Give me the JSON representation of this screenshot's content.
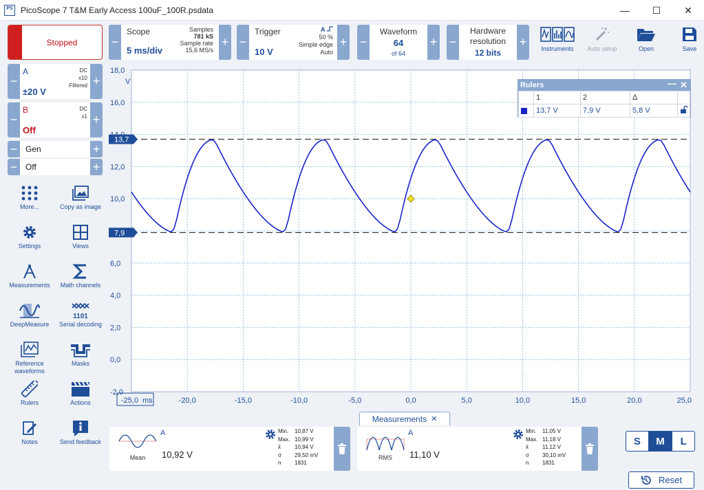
{
  "window": {
    "title": "PicoScope 7 T&M Early Access 100uF_100R.psdata",
    "logo": "PS",
    "minimize": "—",
    "maximize": "☐",
    "close": "✕"
  },
  "toolbar": {
    "run_state": "Stopped",
    "scope": {
      "label": "Scope",
      "value": "5 ms/div",
      "samples_label": "Samples",
      "samples_value": "781 kS",
      "rate_label": "Sample rate",
      "rate_value": "15,6 MS/s"
    },
    "trigger": {
      "label": "Trigger",
      "value": "10 V",
      "channel": "A",
      "edge_icon": "rising-edge-icon",
      "percent": "50 %",
      "type": "Simple edge",
      "mode": "Auto"
    },
    "waveform": {
      "label": "Waveform",
      "current": "64",
      "of": "of 64"
    },
    "hardware": {
      "label1": "Hardware",
      "label2": "resolution",
      "value": "12 bits"
    },
    "instruments_label": "Instruments",
    "autosetup_label": "Auto setup",
    "open_label": "Open",
    "save_label": "Save"
  },
  "channels": {
    "a": {
      "name": "A",
      "coupling": "DC",
      "probe": "x10",
      "filter": "Filtered",
      "range": "±20 V",
      "color": "#1f4e99"
    },
    "b": {
      "name": "B",
      "coupling": "DC",
      "probe": "x1",
      "range": "Off",
      "color": "#c0101a"
    },
    "gen": {
      "name": "Gen",
      "state": "Off"
    }
  },
  "tools": [
    {
      "label": "More...",
      "icon": "more-icon"
    },
    {
      "label": "Copy as image",
      "icon": "image-icon"
    },
    {
      "label": "Settings",
      "icon": "gear-icon"
    },
    {
      "label": "Views",
      "icon": "views-icon"
    },
    {
      "label": "Measurements",
      "icon": "measure-icon"
    },
    {
      "label": "Math channels",
      "icon": "sigma-icon"
    },
    {
      "label": "DeepMeasure",
      "icon": "deepmeasure-icon"
    },
    {
      "label": "Serial decoding",
      "icon": "serial-icon"
    },
    {
      "label": "Reference waveforms",
      "label2": "waveforms",
      "label1": "Reference",
      "icon": "reference-icon"
    },
    {
      "label": "Masks",
      "icon": "mask-icon"
    },
    {
      "label": "Rulers",
      "icon": "ruler-icon"
    },
    {
      "label": "Actions",
      "icon": "clapper-icon"
    },
    {
      "label": "Notes",
      "icon": "notes-icon"
    },
    {
      "label": "Send feedback",
      "icon": "info-icon"
    }
  ],
  "chart_data": {
    "type": "line",
    "x_unit": "ms",
    "y_unit": "V",
    "xlim": [
      -25,
      25
    ],
    "ylim": [
      -2,
      18
    ],
    "x_ticks": [
      "-25,0",
      "-20,0",
      "-15,0",
      "-10,0",
      "-5,0",
      "0,0",
      "5,0",
      "10,0",
      "15,0",
      "20,0",
      "25,0"
    ],
    "y_ticks": [
      "18,0",
      "16,0",
      "14,0",
      "12,0",
      "10,0",
      "8,0",
      "6,0",
      "4,0",
      "2,0",
      "0,0",
      "-2,0"
    ],
    "y_tick_values": [
      18,
      16,
      14,
      12,
      10,
      8,
      6,
      4,
      2,
      0,
      -2
    ],
    "x_tick_values": [
      -25,
      -20,
      -15,
      -10,
      -5,
      0,
      5,
      10,
      15,
      20,
      25
    ],
    "grid": true,
    "series_color": "#1a23c8",
    "series": [
      {
        "name": "A",
        "period_ms": 10,
        "min_v": 7.9,
        "max_v": 13.7,
        "trough_ms": -21.2,
        "peak_ms": -17.6
      }
    ],
    "rulers": [
      {
        "label": "13,7",
        "value": 13.7
      },
      {
        "label": "7,9",
        "value": 7.9
      }
    ],
    "trigger_marker": {
      "x": 0,
      "y": 10
    }
  },
  "rulers_panel": {
    "title": "Rulers",
    "col1": "1",
    "col2": "2",
    "col_delta": "Δ",
    "v1": "13,7 V",
    "v2": "7,9 V",
    "delta": "5,8 V"
  },
  "measurements": {
    "tab_label": "Measurements",
    "items": [
      {
        "channel": "A",
        "name": "Mean",
        "value": "10,92 V",
        "min": "10,87 V",
        "max": "10,99 V",
        "mean": "10,94 V",
        "sigma": "29,50 mV",
        "n": "1831"
      },
      {
        "channel": "A",
        "name": "RMS",
        "value": "11,10 V",
        "min": "11,05 V",
        "max": "11,18 V",
        "mean": "11,12 V",
        "sigma": "30,10 mV",
        "n": "1831"
      }
    ],
    "stat_labels": {
      "min": "Min.",
      "max": "Max.",
      "mean": "x̄",
      "sigma": "σ",
      "n": "n"
    }
  },
  "size": {
    "s": "S",
    "m": "M",
    "l": "L"
  },
  "reset_label": "Reset"
}
